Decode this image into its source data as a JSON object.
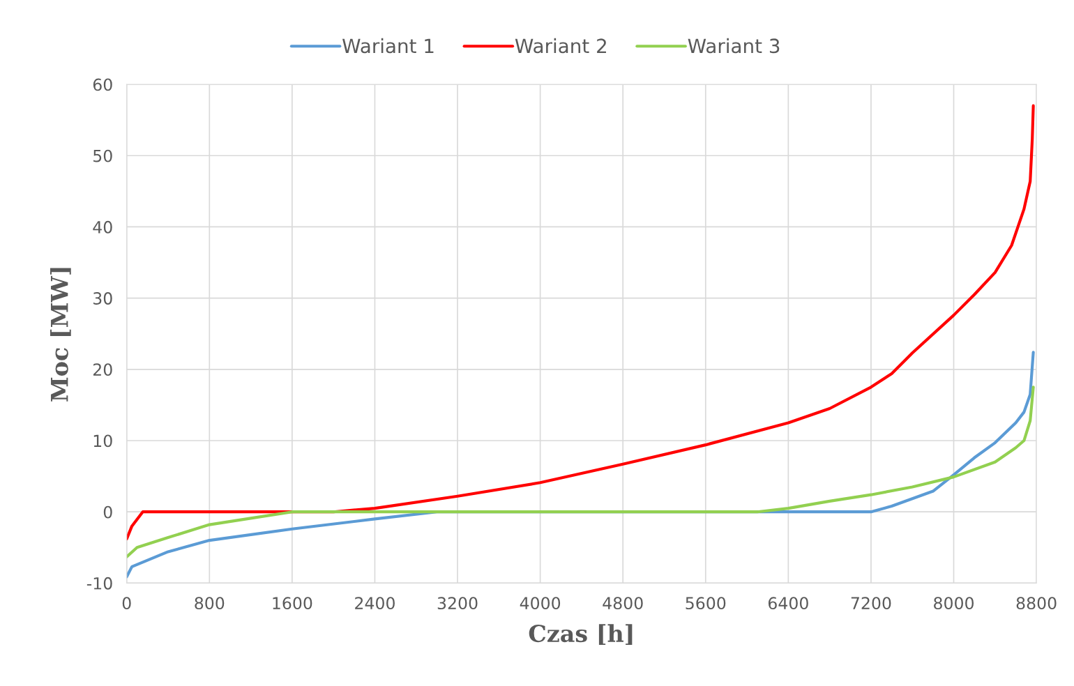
{
  "chart_data": {
    "type": "line",
    "xlabel": "Czas [h]",
    "ylabel": "Moc [MW]",
    "xlim": [
      0,
      8800
    ],
    "ylim": [
      -10,
      60
    ],
    "xticks": [
      0,
      800,
      1600,
      2400,
      3200,
      4000,
      4800,
      5600,
      6400,
      7200,
      8000,
      8800
    ],
    "yticks": [
      -10,
      0,
      10,
      20,
      30,
      40,
      50,
      60
    ],
    "grid": true,
    "legend": "top",
    "marker": "none",
    "line_style": "solid",
    "series": [
      {
        "name": "Wariant 1",
        "color": "#5b9bd5",
        "x": [
          0,
          50,
          400,
          800,
          1600,
          2400,
          3000,
          7200,
          7400,
          7800,
          8000,
          8200,
          8400,
          8600,
          8680,
          8740,
          8770
        ],
        "values": [
          -9.1,
          -7.7,
          -5.6,
          -4.0,
          -2.4,
          -1.0,
          0,
          0,
          0.8,
          2.9,
          5.2,
          7.6,
          9.7,
          12.5,
          14,
          16.5,
          22.4
        ]
      },
      {
        "name": "Wariant 2",
        "color": "#ff0000",
        "x": [
          0,
          50,
          155,
          2000,
          2400,
          3200,
          4000,
          4800,
          5600,
          6400,
          6800,
          7200,
          7400,
          7600,
          8000,
          8200,
          8400,
          8560,
          8680,
          8740,
          8760,
          8770
        ],
        "values": [
          -3.8,
          -2.0,
          0,
          0,
          0.5,
          2.2,
          4.1,
          6.7,
          9.4,
          12.5,
          14.5,
          17.5,
          19.4,
          22.3,
          27.6,
          30.5,
          33.6,
          37.4,
          42.5,
          46.4,
          52.3,
          57
        ]
      },
      {
        "name": "Wariant 3",
        "color": "#92d050",
        "x": [
          0,
          100,
          400,
          800,
          1200,
          1600,
          6100,
          6400,
          6800,
          7200,
          7600,
          8000,
          8400,
          8600,
          8680,
          8740,
          8770
        ],
        "values": [
          -6.3,
          -5.0,
          -3.6,
          -1.8,
          -0.9,
          0,
          0,
          0.5,
          1.5,
          2.4,
          3.5,
          4.9,
          7.0,
          9.0,
          10,
          12.8,
          17.5
        ]
      }
    ]
  }
}
